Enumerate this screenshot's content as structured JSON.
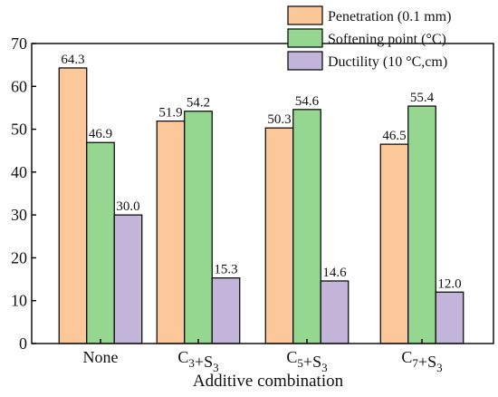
{
  "chart_data": {
    "type": "bar",
    "title": "",
    "xlabel": "Additive combination",
    "ylabel": "",
    "ylim": [
      0,
      70
    ],
    "yticks": [
      "0",
      "10",
      "20",
      "30",
      "40",
      "50",
      "60",
      "70"
    ],
    "categories": [
      {
        "main": "None",
        "parts": []
      },
      {
        "main": "C₃+S₃",
        "parts": [
          [
            "C",
            "3"
          ],
          [
            "+S",
            "3"
          ]
        ]
      },
      {
        "main": "C₅+S₃",
        "parts": [
          [
            "C",
            "5"
          ],
          [
            "+S",
            "3"
          ]
        ]
      },
      {
        "main": "C₇+S₃",
        "parts": [
          [
            "C",
            "7"
          ],
          [
            "+S",
            "3"
          ]
        ]
      }
    ],
    "series": [
      {
        "name": "Penetration (0.1 mm)",
        "color": "#fcc89a",
        "values": [
          64.3,
          51.9,
          50.3,
          46.5
        ],
        "labels": [
          "64.3",
          "51.9",
          "50.3",
          "46.5"
        ]
      },
      {
        "name": "Softening point (°C)",
        "color": "#95d690",
        "values": [
          46.9,
          54.2,
          54.6,
          55.4
        ],
        "labels": [
          "46.9",
          "54.2",
          "54.6",
          "55.4"
        ]
      },
      {
        "name": "Ductility (10 °C,cm)",
        "color": "#c3b4da",
        "values": [
          30.0,
          15.3,
          14.6,
          12.0
        ],
        "labels": [
          "30.0",
          "15.3",
          "14.6",
          "12.0"
        ]
      }
    ],
    "legend": "top-right",
    "grid": false
  }
}
